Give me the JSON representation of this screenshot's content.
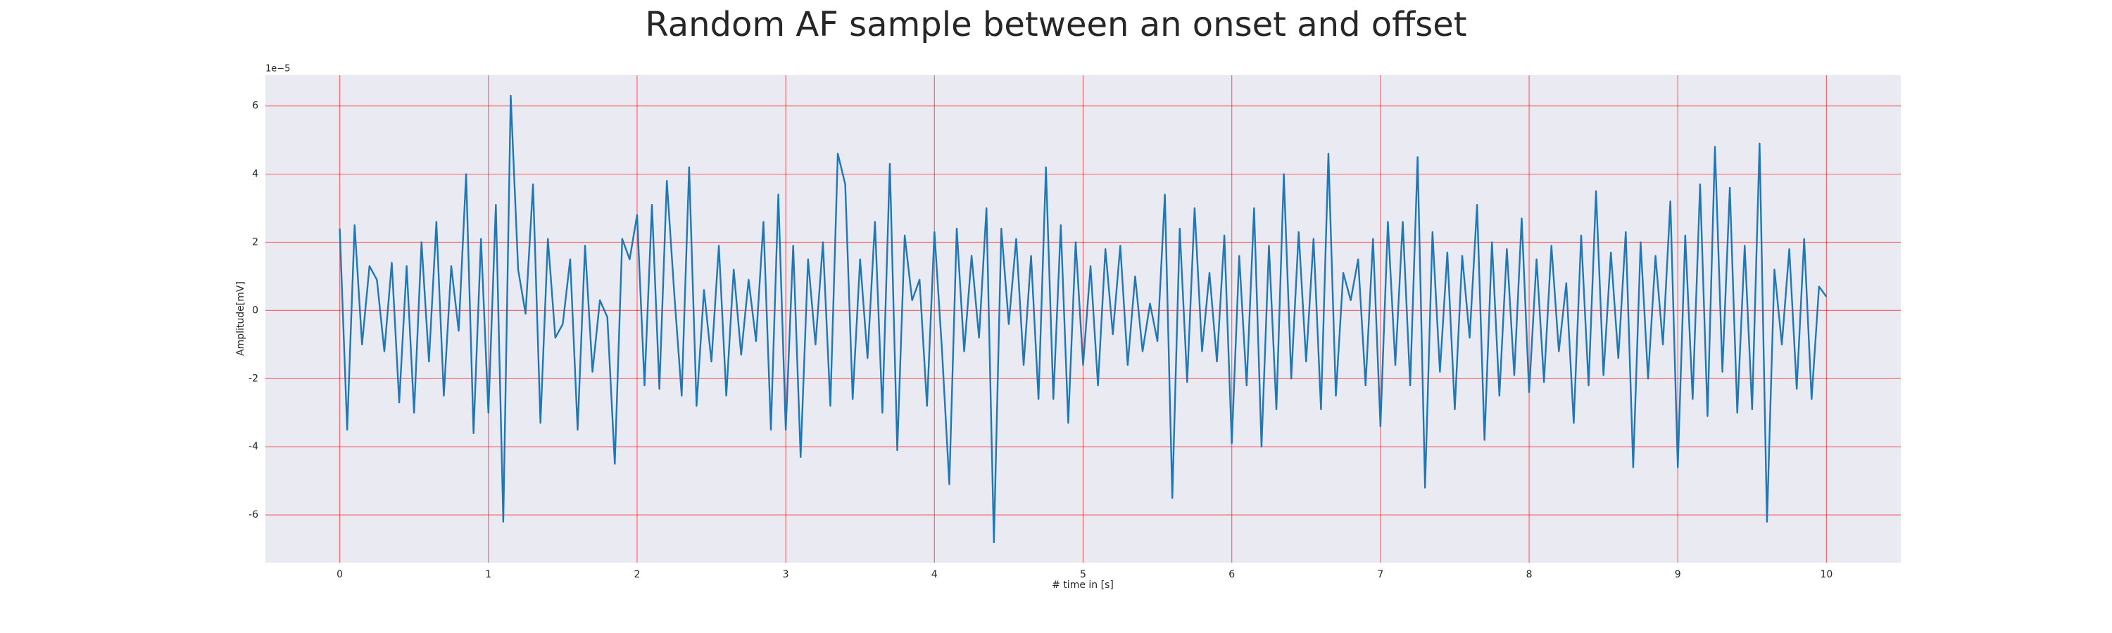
{
  "chart_data": {
    "type": "line",
    "title": "Random AF sample between an onset and offset",
    "xlabel": "# time in [s]",
    "ylabel": "Amplitude[mV]",
    "y_offset_label": "1e−5",
    "color": "#1f77b4",
    "grid": true,
    "grid_color": "#ff0000",
    "background": "#eaeaf2",
    "xlim": [
      -0.5,
      10.5
    ],
    "ylim": [
      -7.4,
      6.9
    ],
    "xticks": [
      0,
      1,
      2,
      3,
      4,
      5,
      6,
      7,
      8,
      9,
      10
    ],
    "yticks": [
      -6,
      -4,
      -2,
      0,
      2,
      4,
      6
    ],
    "x": [
      0,
      0.05,
      0.1,
      0.15,
      0.2,
      0.25,
      0.3,
      0.35,
      0.4,
      0.45,
      0.5,
      0.55,
      0.6,
      0.65,
      0.7,
      0.75,
      0.8,
      0.85,
      0.9,
      0.95,
      1,
      1.05,
      1.1,
      1.15,
      1.2,
      1.25,
      1.3,
      1.35,
      1.4,
      1.45,
      1.5,
      1.55,
      1.6,
      1.65,
      1.7,
      1.75,
      1.8,
      1.85,
      1.9,
      1.95,
      2,
      2.05,
      2.1,
      2.15,
      2.2,
      2.25,
      2.3,
      2.35,
      2.4,
      2.45,
      2.5,
      2.55,
      2.6,
      2.65,
      2.7,
      2.75,
      2.8,
      2.85,
      2.9,
      2.95,
      3,
      3.05,
      3.1,
      3.15,
      3.2,
      3.25,
      3.3,
      3.35,
      3.4,
      3.45,
      3.5,
      3.55,
      3.6,
      3.65,
      3.7,
      3.75,
      3.8,
      3.85,
      3.9,
      3.95,
      4,
      4.05,
      4.1,
      4.15,
      4.2,
      4.25,
      4.3,
      4.35,
      4.4,
      4.45,
      4.5,
      4.55,
      4.6,
      4.65,
      4.7,
      4.75,
      4.8,
      4.85,
      4.9,
      4.95,
      5,
      5.05,
      5.1,
      5.15,
      5.2,
      5.25,
      5.3,
      5.35,
      5.4,
      5.45,
      5.5,
      5.55,
      5.6,
      5.65,
      5.7,
      5.75,
      5.8,
      5.85,
      5.9,
      5.95,
      6,
      6.05,
      6.1,
      6.15,
      6.2,
      6.25,
      6.3,
      6.35,
      6.4,
      6.45,
      6.5,
      6.55,
      6.6,
      6.65,
      6.7,
      6.75,
      6.8,
      6.85,
      6.9,
      6.95,
      7,
      7.05,
      7.1,
      7.15,
      7.2,
      7.25,
      7.3,
      7.35,
      7.4,
      7.45,
      7.5,
      7.55,
      7.6,
      7.65,
      7.7,
      7.75,
      7.8,
      7.85,
      7.9,
      7.95,
      8,
      8.05,
      8.1,
      8.15,
      8.2,
      8.25,
      8.3,
      8.35,
      8.4,
      8.45,
      8.5,
      8.55,
      8.6,
      8.65,
      8.7,
      8.75,
      8.8,
      8.85,
      8.9,
      8.95,
      9,
      9.05,
      9.1,
      9.15,
      9.2,
      9.25,
      9.3,
      9.35,
      9.4,
      9.45,
      9.5,
      9.55,
      9.6,
      9.65,
      9.7,
      9.75,
      9.8,
      9.85,
      9.9,
      9.95,
      10
    ],
    "values": [
      2.4,
      -3.5,
      2.5,
      -1.0,
      1.3,
      0.9,
      -1.2,
      1.4,
      -2.7,
      1.3,
      -3.0,
      2.0,
      -1.5,
      2.6,
      -2.5,
      1.3,
      -0.6,
      4.0,
      -3.6,
      2.1,
      -3.0,
      3.1,
      -6.2,
      6.3,
      1.2,
      -0.1,
      3.7,
      -3.3,
      2.1,
      -0.8,
      -0.4,
      1.5,
      -3.5,
      1.9,
      -1.8,
      0.3,
      -0.2,
      -4.5,
      2.1,
      1.5,
      2.8,
      -2.2,
      3.1,
      -2.3,
      3.8,
      0.5,
      -2.5,
      4.2,
      -2.8,
      0.6,
      -1.5,
      1.9,
      -2.5,
      1.2,
      -1.3,
      0.9,
      -0.9,
      2.6,
      -3.5,
      3.4,
      -3.5,
      1.9,
      -4.3,
      1.5,
      -1.0,
      2.0,
      -2.8,
      4.6,
      3.7,
      -2.6,
      1.5,
      -1.4,
      2.6,
      -3.0,
      4.3,
      -4.1,
      2.2,
      0.3,
      0.9,
      -2.8,
      2.3,
      -1.1,
      -5.1,
      2.4,
      -1.2,
      1.6,
      -0.8,
      3.0,
      -6.8,
      2.4,
      -0.4,
      2.1,
      -1.6,
      1.6,
      -2.6,
      4.2,
      -2.6,
      2.5,
      -3.3,
      2.0,
      -1.6,
      1.3,
      -2.2,
      1.8,
      -0.7,
      1.9,
      -1.6,
      1.0,
      -1.2,
      0.2,
      -0.9,
      3.4,
      -5.5,
      2.4,
      -2.1,
      3.0,
      -1.2,
      1.1,
      -1.5,
      2.2,
      -3.9,
      1.6,
      -2.2,
      3.0,
      -4.0,
      1.9,
      -2.9,
      4.0,
      -2.0,
      2.3,
      -1.5,
      2.1,
      -2.9,
      4.6,
      -2.5,
      1.1,
      0.3,
      1.5,
      -2.2,
      2.1,
      -3.4,
      2.6,
      -1.6,
      2.6,
      -2.2,
      4.5,
      -5.2,
      2.3,
      -1.8,
      1.7,
      -2.9,
      1.6,
      -0.8,
      3.1,
      -3.8,
      2.0,
      -2.5,
      1.8,
      -1.9,
      2.7,
      -2.4,
      1.5,
      -2.1,
      1.9,
      -1.2,
      0.8,
      -3.3,
      2.2,
      -2.2,
      3.5,
      -1.9,
      1.7,
      -1.4,
      2.3,
      -4.6,
      2.0,
      -2.0,
      1.6,
      -1.0,
      3.2,
      -4.6,
      2.2,
      -2.6,
      3.7,
      -3.1,
      4.8,
      -1.8,
      3.6,
      -3.0,
      1.9,
      -2.9,
      4.9,
      -6.2,
      1.2,
      -1.0,
      1.8,
      -2.3,
      2.1,
      -2.6,
      0.7,
      0.4
    ]
  }
}
